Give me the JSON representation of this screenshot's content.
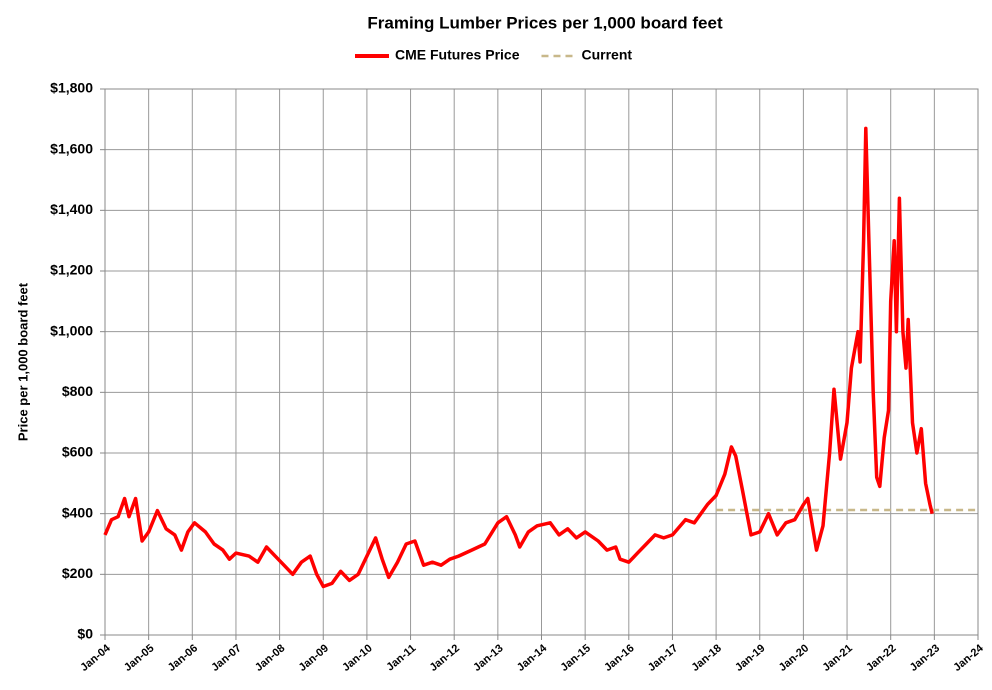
{
  "chart_data": {
    "type": "line",
    "title": "Framing Lumber Prices per 1,000 board feet",
    "y_label": "Price per 1,000 board feet",
    "legend": "top",
    "grid": true,
    "xlim": [
      2004,
      2024
    ],
    "xticks": [
      {
        "value": 2004,
        "label": "Jan-04"
      },
      {
        "value": 2005,
        "label": "Jan-05"
      },
      {
        "value": 2006,
        "label": "Jan-06"
      },
      {
        "value": 2007,
        "label": "Jan-07"
      },
      {
        "value": 2008,
        "label": "Jan-08"
      },
      {
        "value": 2009,
        "label": "Jan-09"
      },
      {
        "value": 2010,
        "label": "Jan-10"
      },
      {
        "value": 2011,
        "label": "Jan-11"
      },
      {
        "value": 2012,
        "label": "Jan-12"
      },
      {
        "value": 2013,
        "label": "Jan-13"
      },
      {
        "value": 2014,
        "label": "Jan-14"
      },
      {
        "value": 2015,
        "label": "Jan-15"
      },
      {
        "value": 2016,
        "label": "Jan-16"
      },
      {
        "value": 2017,
        "label": "Jan-17"
      },
      {
        "value": 2018,
        "label": "Jan-18"
      },
      {
        "value": 2019,
        "label": "Jan-19"
      },
      {
        "value": 2020,
        "label": "Jan-20"
      },
      {
        "value": 2021,
        "label": "Jan-21"
      },
      {
        "value": 2022,
        "label": "Jan-22"
      },
      {
        "value": 2023,
        "label": "Jan-23"
      },
      {
        "value": 2024,
        "label": "Jan-24"
      }
    ],
    "ylim": [
      0,
      1800
    ],
    "yticks": [
      {
        "value": 0,
        "label": "$0"
      },
      {
        "value": 200,
        "label": "$200"
      },
      {
        "value": 400,
        "label": "$400"
      },
      {
        "value": 600,
        "label": "$600"
      },
      {
        "value": 800,
        "label": "$800"
      },
      {
        "value": 1000,
        "label": "$1,000"
      },
      {
        "value": 1200,
        "label": "$1,200"
      },
      {
        "value": 1400,
        "label": "$1,400"
      },
      {
        "value": 1600,
        "label": "$1,600"
      },
      {
        "value": 1800,
        "label": "$1,800"
      }
    ],
    "series": [
      {
        "name": "CME Futures Price",
        "color": "#ff0000",
        "dashed": false,
        "x": [
          2004.0,
          2004.15,
          2004.3,
          2004.45,
          2004.55,
          2004.7,
          2004.85,
          2005.0,
          2005.2,
          2005.4,
          2005.6,
          2005.75,
          2005.9,
          2006.05,
          2006.3,
          2006.5,
          2006.7,
          2006.85,
          2007.0,
          2007.3,
          2007.5,
          2007.7,
          2007.9,
          2008.1,
          2008.3,
          2008.5,
          2008.7,
          2008.85,
          2009.0,
          2009.2,
          2009.4,
          2009.6,
          2009.8,
          2010.0,
          2010.2,
          2010.35,
          2010.5,
          2010.7,
          2010.9,
          2011.1,
          2011.3,
          2011.5,
          2011.7,
          2011.9,
          2012.1,
          2012.4,
          2012.7,
          2013.0,
          2013.2,
          2013.4,
          2013.5,
          2013.7,
          2013.9,
          2014.2,
          2014.4,
          2014.6,
          2014.8,
          2015.0,
          2015.3,
          2015.5,
          2015.7,
          2015.8,
          2016.0,
          2016.2,
          2016.4,
          2016.6,
          2016.8,
          2017.0,
          2017.3,
          2017.5,
          2017.8,
          2018.0,
          2018.2,
          2018.35,
          2018.45,
          2018.6,
          2018.8,
          2019.0,
          2019.2,
          2019.4,
          2019.6,
          2019.8,
          2020.0,
          2020.1,
          2020.3,
          2020.45,
          2020.6,
          2020.7,
          2020.85,
          2021.0,
          2021.1,
          2021.25,
          2021.3,
          2021.38,
          2021.43,
          2021.5,
          2021.6,
          2021.68,
          2021.75,
          2021.85,
          2021.95,
          2022.0,
          2022.08,
          2022.13,
          2022.2,
          2022.28,
          2022.35,
          2022.4,
          2022.5,
          2022.6,
          2022.7,
          2022.8,
          2022.9,
          2022.95
        ],
        "values": [
          330,
          380,
          390,
          450,
          390,
          450,
          310,
          340,
          410,
          350,
          330,
          280,
          340,
          370,
          340,
          300,
          280,
          250,
          270,
          260,
          240,
          290,
          260,
          230,
          200,
          240,
          260,
          200,
          160,
          170,
          210,
          180,
          200,
          260,
          320,
          250,
          190,
          240,
          300,
          310,
          230,
          240,
          230,
          250,
          260,
          280,
          300,
          370,
          390,
          330,
          290,
          340,
          360,
          370,
          330,
          350,
          320,
          340,
          310,
          280,
          290,
          250,
          240,
          270,
          300,
          330,
          320,
          330,
          380,
          370,
          430,
          460,
          530,
          620,
          590,
          480,
          330,
          340,
          400,
          330,
          370,
          380,
          430,
          450,
          280,
          360,
          600,
          810,
          580,
          700,
          880,
          1000,
          900,
          1300,
          1670,
          1300,
          800,
          520,
          490,
          650,
          740,
          1100,
          1300,
          1000,
          1440,
          1000,
          880,
          1040,
          700,
          600,
          680,
          500,
          430,
          400
        ]
      },
      {
        "name": "Current",
        "color": "#c8b88a",
        "dashed": true,
        "x": [
          2018,
          2024
        ],
        "values": [
          412,
          412
        ]
      }
    ]
  }
}
